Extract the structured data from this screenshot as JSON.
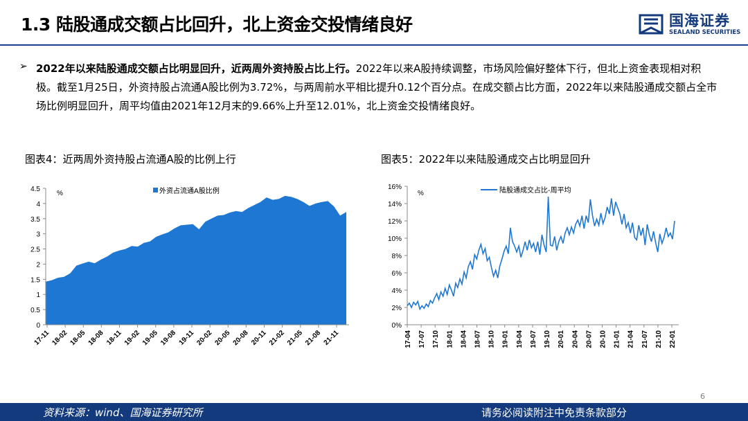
{
  "header": {
    "title": "1.3 陆股通成交额占比回升，北上资金交投情绪良好",
    "logo_cn": "国海证券",
    "logo_en": "SEALAND SECURITIES",
    "accent": "#123a7c"
  },
  "body": {
    "lead": "2022年以来陆股通成交额占比明显回升，近两周外资持股占比上行。",
    "text": "2022年以来A股持续调整，市场风险偏好整体下行，但北上资金表现相对积极。截至1月25日，外资持股占流通A股比例为3.72%，与两周前水平相比提升0.12个百分点。在成交额占比方面，2022年以来陆股通成交额占全市场比例明显回升，周平均值由2021年12月末的9.66%上升至12.01%，北上资金交投情绪良好。"
  },
  "charts": {
    "left_title": "图表4：近两周外资持股占流通A股的比例上行",
    "right_title": "图表5：2022年以来陆股通成交占比明显回升"
  },
  "chart_data": [
    {
      "type": "area",
      "title": "图表4：近两周外资持股占流通A股的比例上行",
      "unit_label": "%",
      "series": [
        {
          "name": "外资占流通A股比例",
          "color": "#1f77d4"
        }
      ],
      "ylim": [
        0,
        4.5
      ],
      "yticks": [
        "0",
        "0.5",
        "1",
        "1.5",
        "2",
        "2.5",
        "3",
        "3.5",
        "4",
        "4.5"
      ],
      "xticks": [
        "17-11",
        "18-02",
        "18-05",
        "18-08",
        "18-11",
        "19-02",
        "19-05",
        "19-08",
        "19-11",
        "20-02",
        "20-05",
        "20-08",
        "20-11",
        "21-02",
        "21-05",
        "21-08",
        "21-11"
      ],
      "x": [
        "17-11",
        "18-01",
        "18-02",
        "18-04",
        "18-05",
        "18-06",
        "18-07",
        "18-08",
        "18-09",
        "18-10",
        "18-11",
        "18-12",
        "19-01",
        "19-02",
        "19-03",
        "19-04",
        "19-05",
        "19-06",
        "19-07",
        "19-08",
        "19-09",
        "19-10",
        "19-11",
        "19-12",
        "20-01",
        "20-02",
        "20-03",
        "20-04",
        "20-05",
        "20-06",
        "20-07",
        "20-08",
        "20-09",
        "20-10",
        "20-11",
        "20-12",
        "21-01",
        "21-02",
        "21-03",
        "21-04",
        "21-05",
        "21-06",
        "21-07",
        "21-08",
        "21-09",
        "21-10",
        "21-11",
        "21-12",
        "22-01a",
        "22-01b"
      ],
      "values": [
        1.42,
        1.47,
        1.55,
        1.58,
        1.7,
        1.95,
        2.02,
        2.08,
        2.03,
        2.15,
        2.25,
        2.38,
        2.45,
        2.5,
        2.6,
        2.58,
        2.7,
        2.75,
        2.9,
        2.98,
        3.05,
        3.18,
        3.28,
        3.3,
        3.32,
        3.15,
        3.4,
        3.5,
        3.6,
        3.62,
        3.7,
        3.75,
        3.72,
        3.85,
        3.95,
        4.05,
        4.2,
        4.12,
        4.15,
        4.25,
        4.22,
        4.15,
        4.05,
        3.92,
        4.0,
        4.05,
        4.08,
        3.9,
        3.6,
        3.72
      ]
    },
    {
      "type": "line",
      "title": "图表5：2022年以来陆股通成交占比明显回升",
      "unit_label": "%",
      "series": [
        {
          "name": "陆股通成交占比-周平均",
          "color": "#1f77d4"
        }
      ],
      "ylim": [
        0,
        16
      ],
      "yticks": [
        "0%",
        "2%",
        "4%",
        "6%",
        "8%",
        "10%",
        "12%",
        "14%",
        "16%"
      ],
      "xticks": [
        "17-04",
        "17-07",
        "17-10",
        "18-01",
        "18-04",
        "18-07",
        "18-10",
        "19-01",
        "19-04",
        "19-07",
        "19-10",
        "20-01",
        "20-04",
        "20-07",
        "20-10",
        "21-01",
        "21-04",
        "21-07",
        "21-10",
        "22-01"
      ],
      "values": [
        2.2,
        2.5,
        2.0,
        2.6,
        2.3,
        2.7,
        1.8,
        2.2,
        1.9,
        2.4,
        2.1,
        2.8,
        2.5,
        3.1,
        3.6,
        2.9,
        3.8,
        3.3,
        4.2,
        3.5,
        4.6,
        4.0,
        3.3,
        4.8,
        4.3,
        5.3,
        4.7,
        6.1,
        5.4,
        6.7,
        7.3,
        6.4,
        8.1,
        7.6,
        8.6,
        9.3,
        8.2,
        8.8,
        7.4,
        7.8,
        6.6,
        5.6,
        6.3,
        5.4,
        6.8,
        7.6,
        8.5,
        9.1,
        8.2,
        11.2,
        9.6,
        9.1,
        8.4,
        9.1,
        7.8,
        8.6,
        9.6,
        8.6,
        9.8,
        8.9,
        9.4,
        8.4,
        9.6,
        8.1,
        10.4,
        9.2,
        8.4,
        14.8,
        9.2,
        9.1,
        10.2,
        8.6,
        9.6,
        10.2,
        9.4,
        10.6,
        11.2,
        10.4,
        11.3,
        10.6,
        11.6,
        12.1,
        11.4,
        12.6,
        11.1,
        12.6,
        11.8,
        14.5,
        12.6,
        11.4,
        12.2,
        11.5,
        12.9,
        11.7,
        12.4,
        13.6,
        12.8,
        14.6,
        12.6,
        14.2,
        13.5,
        12.8,
        11.6,
        12.8,
        11.2,
        11.8,
        10.6,
        11.8,
        10.1,
        9.8,
        11.5,
        10.3,
        11.2,
        9.2,
        11.6,
        10.4,
        9.6,
        10.8,
        9.5,
        8.4,
        10.5,
        9.4,
        10.1,
        11.2,
        10.2,
        10.6,
        9.9,
        12.0
      ]
    }
  ],
  "footer": {
    "source": "资料来源：wind、国海证券研究所",
    "disclaimer": "请务必阅读附注中免责条款部分",
    "page": "6"
  }
}
